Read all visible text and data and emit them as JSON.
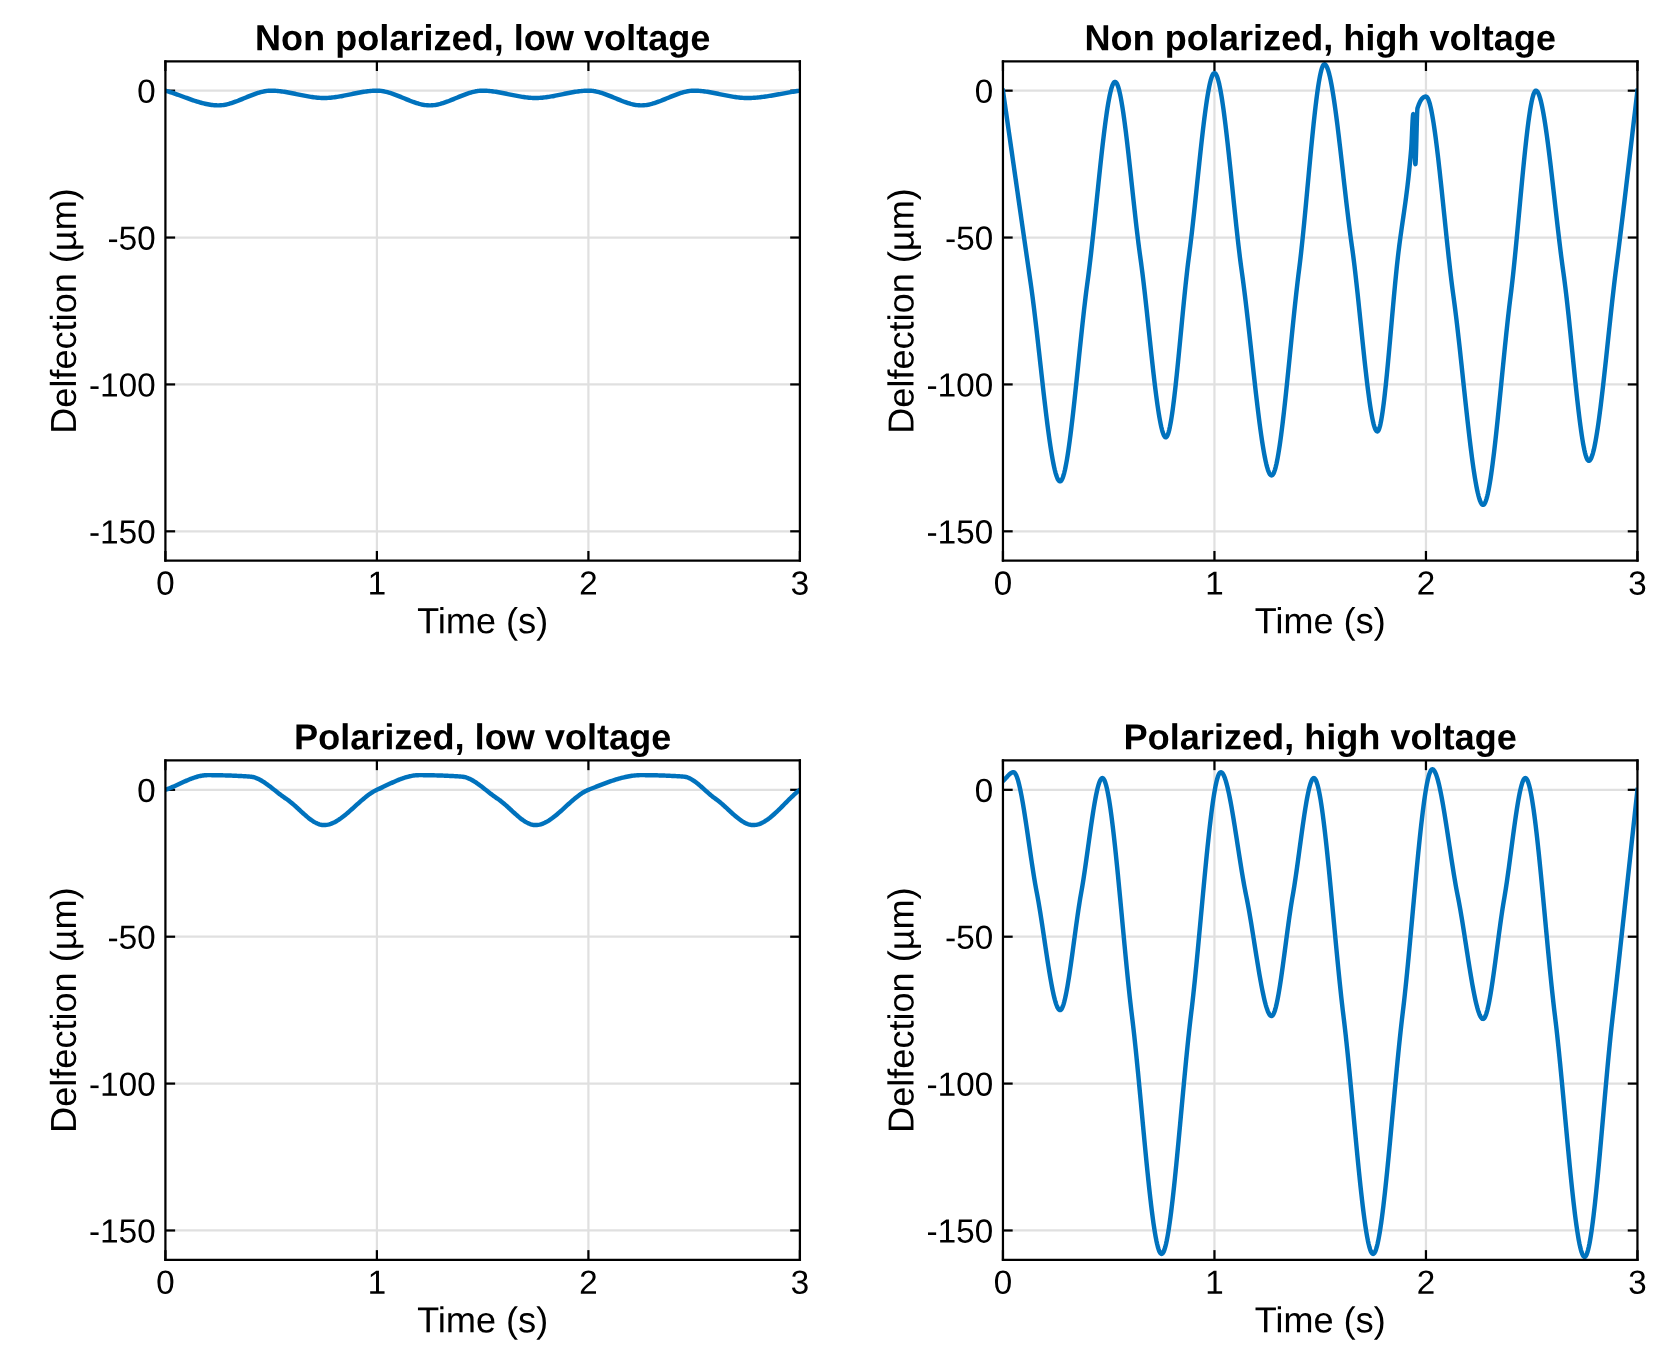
{
  "chart_data": [
    {
      "type": "line",
      "title": "Non polarized, low voltage",
      "xlabel": "Time (s)",
      "ylabel": "Delfection (µm)",
      "xlim": [
        0,
        3
      ],
      "ylim": [
        -160,
        10
      ],
      "xticks": [
        0,
        1,
        2,
        3
      ],
      "yticks": [
        -150,
        -100,
        -50,
        0
      ],
      "grid": true,
      "legend": false,
      "marker": "none",
      "line_style": "solid",
      "series": [
        {
          "color": "#0072bd",
          "x": [
            0,
            0.25,
            0.5,
            0.75,
            1.0,
            1.25,
            1.5,
            1.75,
            2.0,
            2.25,
            2.5,
            2.75,
            3.0
          ],
          "values": [
            0,
            -5,
            0,
            -2.5,
            0,
            -5,
            0,
            -2.5,
            0,
            -5,
            0,
            -2.5,
            0
          ]
        }
      ]
    },
    {
      "type": "line",
      "title": "Non polarized, high voltage",
      "xlabel": "Time (s)",
      "ylabel": "Delfection (µm)",
      "xlim": [
        0,
        3
      ],
      "ylim": [
        -160,
        10
      ],
      "xticks": [
        0,
        1,
        2,
        3
      ],
      "yticks": [
        -150,
        -100,
        -50,
        0
      ],
      "grid": true,
      "legend": false,
      "marker": "none",
      "line_style": "solid",
      "series": [
        {
          "color": "#0072bd",
          "x": [
            0,
            0.13,
            0.27,
            0.4,
            0.53,
            0.65,
            0.77,
            0.88,
            1.0,
            1.13,
            1.27,
            1.4,
            1.52,
            1.65,
            1.77,
            1.87,
            1.93,
            1.94,
            1.95,
            1.96,
            2.0,
            2.13,
            2.27,
            2.4,
            2.52,
            2.65,
            2.77,
            2.9,
            3.0
          ],
          "values": [
            0,
            -65,
            -133,
            -65,
            3,
            -57,
            -118,
            -56,
            6,
            -62,
            -131,
            -61,
            9,
            -53,
            -116,
            -55,
            -20,
            -8,
            -25,
            -6,
            -2,
            -70,
            -141,
            -70,
            0,
            -62,
            -126,
            -60,
            0
          ]
        }
      ]
    },
    {
      "type": "line",
      "title": "Polarized, low voltage",
      "xlabel": "Time (s)",
      "ylabel": "Delfection (µm)",
      "xlim": [
        0,
        3
      ],
      "ylim": [
        -160,
        10
      ],
      "xticks": [
        0,
        1,
        2,
        3
      ],
      "yticks": [
        -150,
        -100,
        -50,
        0
      ],
      "grid": true,
      "legend": false,
      "marker": "none",
      "line_style": "solid",
      "series": [
        {
          "color": "#0072bd",
          "x": [
            0,
            0.2,
            0.4,
            0.57,
            0.75,
            1.0,
            1.2,
            1.4,
            1.57,
            1.75,
            2.0,
            2.25,
            2.45,
            2.6,
            2.78,
            3.0
          ],
          "values": [
            0,
            5,
            4.5,
            -3,
            -12,
            0,
            5,
            4.5,
            -3,
            -12,
            0,
            5,
            4.5,
            -3,
            -12,
            0
          ]
        }
      ]
    },
    {
      "type": "line",
      "title": "Polarized, high voltage",
      "xlabel": "Time (s)",
      "ylabel": "Delfection (µm)",
      "xlim": [
        0,
        3
      ],
      "ylim": [
        -160,
        10
      ],
      "xticks": [
        0,
        1,
        2,
        3
      ],
      "yticks": [
        -150,
        -100,
        -50,
        0
      ],
      "grid": true,
      "legend": false,
      "marker": "none",
      "line_style": "solid",
      "series": [
        {
          "color": "#0072bd",
          "x": [
            0,
            0.05,
            0.16,
            0.27,
            0.37,
            0.47,
            0.61,
            0.75,
            0.89,
            1.03,
            1.15,
            1.27,
            1.37,
            1.47,
            1.61,
            1.75,
            1.89,
            2.03,
            2.15,
            2.27,
            2.37,
            2.47,
            2.61,
            2.75,
            2.88,
            3.0
          ],
          "values": [
            3,
            6,
            -35,
            -75,
            -35,
            4,
            -77,
            -158,
            -76,
            6,
            -36,
            -77,
            -36,
            4,
            -77,
            -158,
            -76,
            7,
            -36,
            -78,
            -37,
            4,
            -77,
            -159,
            -79,
            0
          ]
        }
      ]
    }
  ]
}
